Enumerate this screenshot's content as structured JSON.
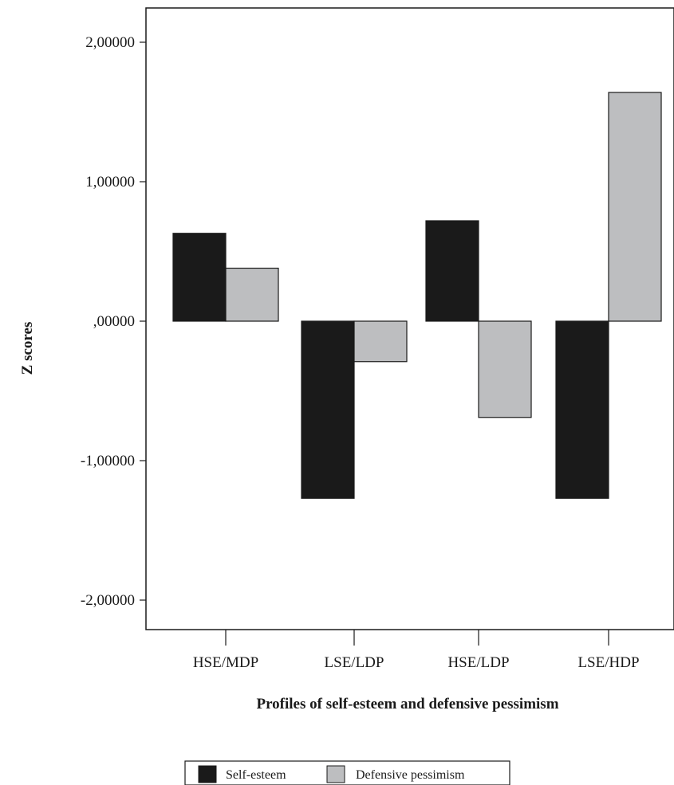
{
  "chart_data": {
    "type": "bar",
    "title": "",
    "xlabel": "Profiles of self-esteem and defensive pessimism",
    "ylabel": "Z scores",
    "categories": [
      "HSE/MDP",
      "LSE/LDP",
      "HSE/LDP",
      "LSE/HDP"
    ],
    "series": [
      {
        "name": "Self-esteem",
        "color": "#1a1a1a",
        "values": [
          0.63,
          -1.27,
          0.72,
          -1.27
        ]
      },
      {
        "name": "Defensive pessimism",
        "color": "#bdbec0",
        "values": [
          0.38,
          -0.29,
          -0.69,
          1.64
        ]
      }
    ],
    "ylim": [
      -2.2,
      2.2
    ],
    "yticks": [
      {
        "value": 2,
        "label": "2,00000"
      },
      {
        "value": 1,
        "label": "1,00000"
      },
      {
        "value": 0,
        "label": ",00000"
      },
      {
        "value": -1,
        "label": "-1,00000"
      },
      {
        "value": -2,
        "label": "-2,00000"
      }
    ],
    "grid": false,
    "legend_position": "bottom-center"
  }
}
